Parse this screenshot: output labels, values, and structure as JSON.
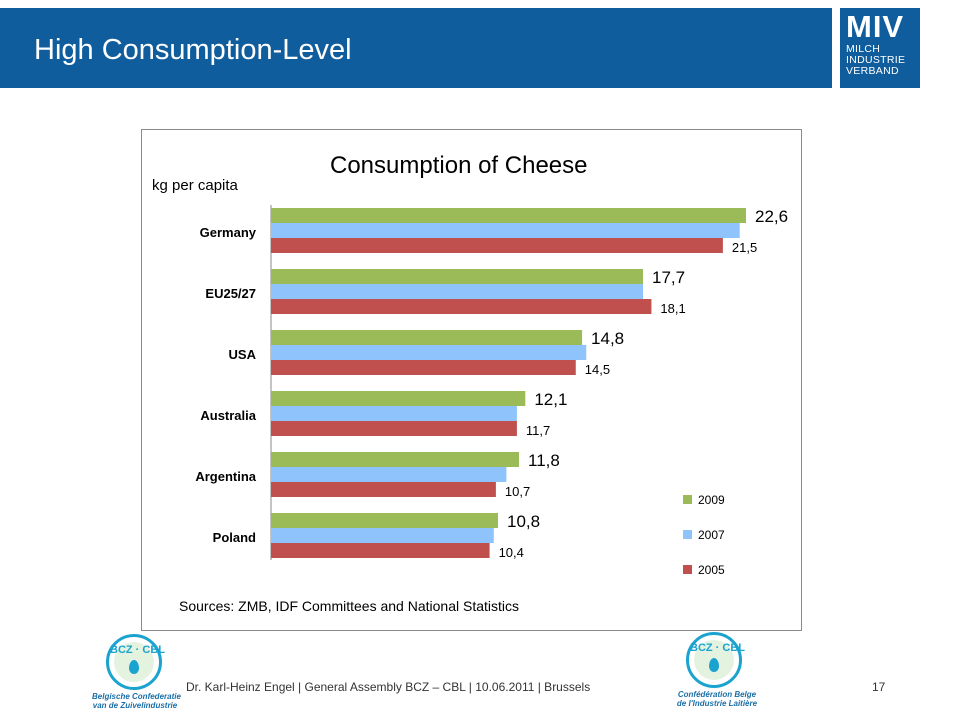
{
  "slide": {
    "title": "High Consumption-Level",
    "footer": "Dr. Karl-Heinz  Engel | General  Assembly BCZ – CBL | 10.06.2011 | Brussels",
    "page_number": "17"
  },
  "logo": {
    "big": "MIV",
    "lines": [
      "MILCH",
      "INDUSTRIE",
      "VERBAND"
    ]
  },
  "logos_bcz": [
    {
      "letters": "BCZ · CBL",
      "caption_lines": [
        "Belgische Confederatie",
        "van de Zuivelindustrie"
      ]
    },
    {
      "letters": "BCZ · CBL",
      "caption_lines": [
        "Confédération Belge",
        "de l'Industrie Laitière"
      ]
    }
  ],
  "colors": {
    "header_bg": "#0f5d9c",
    "series_2009": "#9bbb59",
    "series_2007": "#8fc3fb",
    "series_2005": "#c0504d",
    "logo_accent": "#1aa3cf"
  },
  "chart_data": {
    "type": "bar",
    "orientation": "horizontal",
    "title": "Consumption of Cheese",
    "ylabel": "kg per capita",
    "source": "Sources: ZMB, IDF Committees and National Statistics",
    "categories": [
      "Germany",
      "EU25/27",
      "USA",
      "Australia",
      "Argentina",
      "Poland"
    ],
    "series": [
      {
        "name": "2009",
        "color": "#9bbb59",
        "values": [
          22.6,
          17.7,
          14.8,
          12.1,
          11.8,
          10.8
        ],
        "labels": [
          "22,6",
          "17,7",
          "14,8",
          "12,1",
          "11,8",
          "10,8"
        ]
      },
      {
        "name": "2007",
        "color": "#8fc3fb",
        "values": [
          22.3,
          17.7,
          15.0,
          11.7,
          11.2,
          10.6
        ],
        "labels": []
      },
      {
        "name": "2005",
        "color": "#c0504d",
        "values": [
          21.5,
          18.1,
          14.5,
          11.7,
          10.7,
          10.4
        ],
        "labels": [
          "21,5",
          "18,1",
          "14,5",
          "11,7",
          "10,7",
          "10,4"
        ]
      }
    ],
    "xlim": [
      0,
      25
    ],
    "grid": false,
    "legend_placement": "bottom-right"
  }
}
